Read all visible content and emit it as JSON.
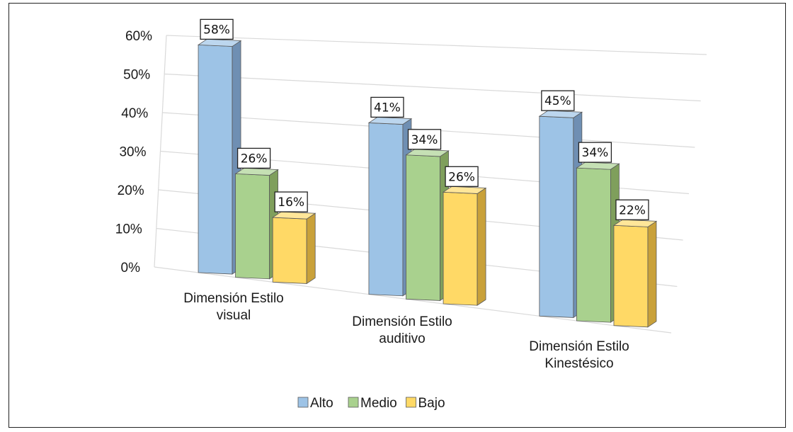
{
  "chart_data": {
    "type": "bar",
    "categories": [
      [
        "Dimensión Estilo",
        "visual"
      ],
      [
        "Dimensión Estilo",
        "auditivo"
      ],
      [
        "Dimensión Estilo",
        "Kinestésico"
      ]
    ],
    "series": [
      {
        "name": "Alto",
        "values": [
          58,
          41,
          45
        ],
        "labels": [
          "58%",
          "41%",
          "45%"
        ]
      },
      {
        "name": "Medio",
        "values": [
          26,
          34,
          34
        ],
        "labels": [
          "26%",
          "34%",
          "34%"
        ]
      },
      {
        "name": "Bajo",
        "values": [
          16,
          26,
          22
        ],
        "labels": [
          "16%",
          "26%",
          "22%"
        ]
      }
    ],
    "yticks": [
      "0%",
      "10%",
      "20%",
      "30%",
      "40%",
      "50%",
      "60%"
    ],
    "ylim": [
      0,
      60
    ],
    "grid": true,
    "legend": "bottom",
    "three_d": true,
    "colors": {
      "Alto": {
        "front": "#9dc3e6",
        "side": "#6f8fb3",
        "top": "#bcd6ee"
      },
      "Medio": {
        "front": "#a9d18e",
        "side": "#7f9f5c",
        "top": "#c5e0b4"
      },
      "Bajo": {
        "front": "#ffd966",
        "side": "#c9a13a",
        "top": "#ffe699"
      }
    }
  }
}
